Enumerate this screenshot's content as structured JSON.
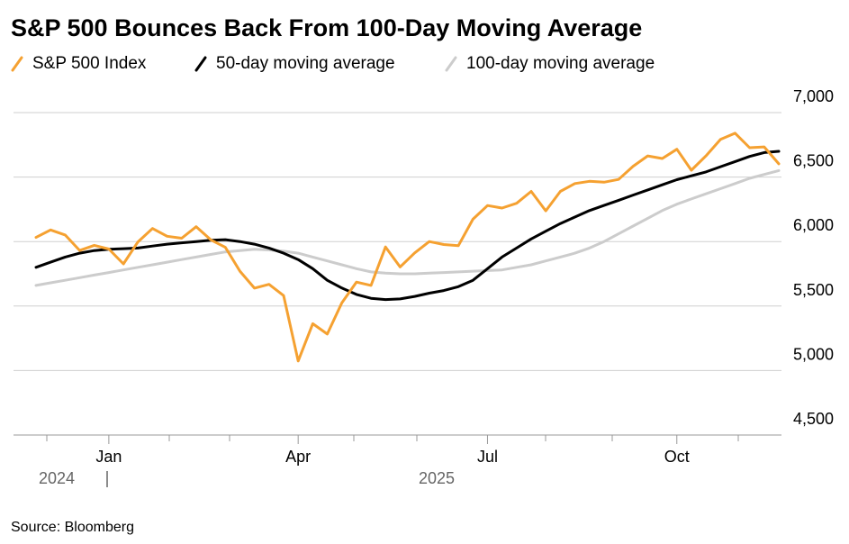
{
  "chart_data": {
    "type": "line",
    "title": "S&P 500 Bounces Back From 100-Day Moving Average",
    "source": "Source: Bloomberg",
    "categories": [
      null,
      null,
      null,
      null,
      null,
      "Jan",
      null,
      null,
      null,
      null,
      null,
      null,
      null,
      null,
      null,
      null,
      null,
      null,
      "Apr",
      null,
      null,
      null,
      null,
      null,
      null,
      null,
      null,
      null,
      null,
      null,
      null,
      "Jul",
      null,
      null,
      null,
      null,
      null,
      null,
      null,
      null,
      null,
      null,
      null,
      null,
      "Oct",
      null,
      null,
      null,
      null,
      null,
      null,
      null
    ],
    "x_group_labels": [
      "2024",
      "2025"
    ],
    "series": [
      {
        "name": "S&P 500 Index",
        "color": "#f5a131",
        "values": [
          6032,
          6090,
          6051,
          5931,
          5971,
          5942,
          5827,
          5997,
          6101,
          6041,
          6026,
          6115,
          6013,
          5955,
          5770,
          5639,
          5668,
          5581,
          5074,
          5363,
          5283,
          5525,
          5686,
          5660,
          5958,
          5803,
          5912,
          6000,
          5977,
          5968,
          6173,
          6279,
          6260,
          6297,
          6389,
          6238,
          6389,
          6450,
          6467,
          6460,
          6482,
          6584,
          6664,
          6644,
          6716,
          6553,
          6664,
          6792,
          6840,
          6728,
          6734,
          6603
        ]
      },
      {
        "name": "50-day moving average",
        "color": "#000000",
        "values": [
          5800,
          5840,
          5880,
          5910,
          5930,
          5940,
          5945,
          5950,
          5965,
          5980,
          5990,
          6000,
          6010,
          6015,
          6000,
          5980,
          5950,
          5910,
          5860,
          5790,
          5700,
          5640,
          5590,
          5560,
          5550,
          5555,
          5575,
          5600,
          5620,
          5650,
          5700,
          5790,
          5880,
          5950,
          6020,
          6080,
          6140,
          6190,
          6240,
          6280,
          6320,
          6360,
          6400,
          6440,
          6480,
          6510,
          6540,
          6580,
          6620,
          6660,
          6690,
          6700
        ]
      },
      {
        "name": "100-day moving average",
        "color": "#cccccc",
        "values": [
          5660,
          5680,
          5700,
          5720,
          5740,
          5760,
          5780,
          5800,
          5820,
          5840,
          5860,
          5880,
          5900,
          5920,
          5930,
          5940,
          5935,
          5925,
          5910,
          5880,
          5850,
          5820,
          5790,
          5765,
          5755,
          5750,
          5750,
          5755,
          5760,
          5765,
          5770,
          5775,
          5780,
          5800,
          5820,
          5850,
          5880,
          5910,
          5950,
          6000,
          6060,
          6120,
          6180,
          6240,
          6290,
          6330,
          6370,
          6410,
          6450,
          6490,
          6520,
          6550
        ]
      }
    ],
    "ylim": [
      4500,
      7000
    ],
    "yticks": [
      {
        "value": 4500,
        "label": "4,500"
      },
      {
        "value": 5000,
        "label": "5,000"
      },
      {
        "value": 5500,
        "label": "5,500"
      },
      {
        "value": 6000,
        "label": "6,000"
      },
      {
        "value": 6500,
        "label": "6,500"
      },
      {
        "value": 7000,
        "label": "7,000"
      }
    ],
    "grid": true
  }
}
